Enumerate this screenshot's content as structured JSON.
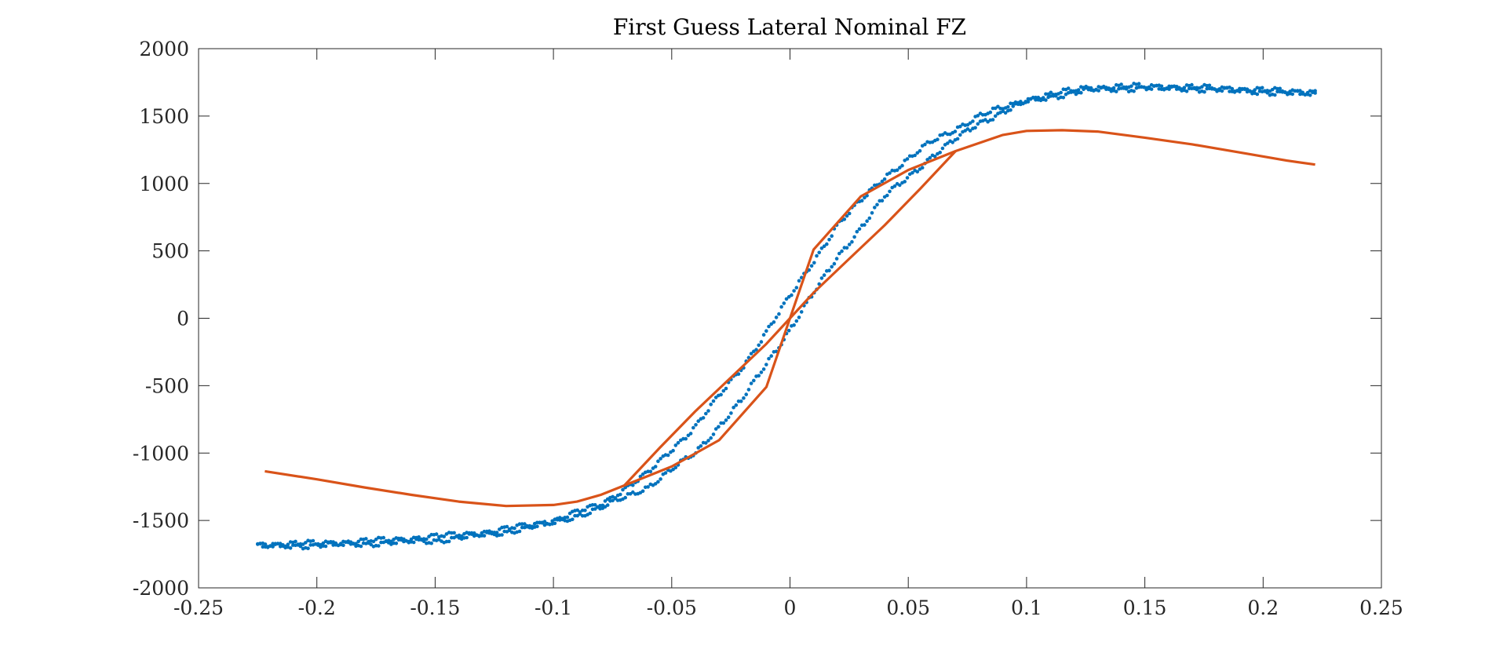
{
  "chart_data": {
    "type": "scatter",
    "title": "First Guess Lateral Nominal FZ",
    "xlabel": "",
    "ylabel": "",
    "xlim": [
      -0.25,
      0.25
    ],
    "ylim": [
      -2000,
      2000
    ],
    "xticks": [
      -0.25,
      -0.2,
      -0.15,
      -0.1,
      -0.05,
      0,
      0.05,
      0.1,
      0.15,
      0.2,
      0.25
    ],
    "xtick_labels": [
      "-0.25",
      "-0.2",
      "-0.15",
      "-0.1",
      "-0.05",
      "0",
      "0.05",
      "0.1",
      "0.15",
      "0.2",
      "0.25"
    ],
    "yticks": [
      -2000,
      -1500,
      -1000,
      -500,
      0,
      500,
      1000,
      1500,
      2000
    ],
    "ytick_labels": [
      "-2000",
      "-1500",
      "-1000",
      "-500",
      "0",
      "500",
      "1000",
      "1500",
      "2000"
    ],
    "grid": false,
    "colors": {
      "measured": "#0072BD",
      "fit": "#D95319",
      "axes": "#262626"
    },
    "series": [
      {
        "style": "dots",
        "sweep_up": {
          "x": [
            -0.225,
            -0.2,
            -0.175,
            -0.15,
            -0.125,
            -0.1,
            -0.08,
            -0.06,
            -0.04,
            -0.02,
            0,
            0.02,
            0.04,
            0.06,
            0.08,
            0.1,
            0.125,
            0.15,
            0.175,
            0.2,
            0.222
          ],
          "y": [
            -1690,
            -1685,
            -1670,
            -1650,
            -1600,
            -1520,
            -1410,
            -1250,
            -1000,
            -600,
            -80,
            450,
            900,
            1200,
            1450,
            1610,
            1690,
            1710,
            1700,
            1680,
            1660
          ]
        },
        "sweep_down": {
          "x": [
            0.222,
            0.2,
            0.175,
            0.15,
            0.125,
            0.1,
            0.08,
            0.06,
            0.04,
            0.02,
            0,
            -0.02,
            -0.04,
            -0.06,
            -0.08,
            -0.1,
            -0.125,
            -0.15,
            -0.175,
            -0.2,
            -0.225
          ],
          "y": [
            1680,
            1690,
            1710,
            1720,
            1710,
            1620,
            1500,
            1310,
            1050,
            690,
            160,
            -360,
            -800,
            -1150,
            -1380,
            -1500,
            -1580,
            -1620,
            -1650,
            -1670,
            -1680
          ]
        }
      },
      {
        "style": "line",
        "branch_outer": {
          "x": [
            -0.222,
            -0.2,
            -0.18,
            -0.16,
            -0.14,
            -0.12,
            -0.1,
            -0.09,
            -0.08,
            -0.07,
            -0.05,
            -0.03,
            -0.01,
            0,
            0.01,
            0.03,
            0.05,
            0.07,
            0.09,
            0.1,
            0.115,
            0.13,
            0.15,
            0.17,
            0.19,
            0.21,
            0.222
          ],
          "y": [
            -1135,
            -1195,
            -1255,
            -1310,
            -1360,
            -1393,
            -1385,
            -1360,
            -1310,
            -1240,
            -1100,
            -905,
            -510,
            0,
            510,
            905,
            1100,
            1240,
            1360,
            1390,
            1395,
            1385,
            1340,
            1290,
            1230,
            1170,
            1140
          ]
        },
        "branch_inner": {
          "x": [
            -0.07,
            -0.055,
            -0.04,
            -0.025,
            -0.01,
            0,
            0.01,
            0.025,
            0.04,
            0.055,
            0.07
          ],
          "y": [
            -1240,
            -960,
            -690,
            -440,
            -190,
            0,
            190,
            440,
            690,
            960,
            1240
          ]
        }
      }
    ]
  }
}
